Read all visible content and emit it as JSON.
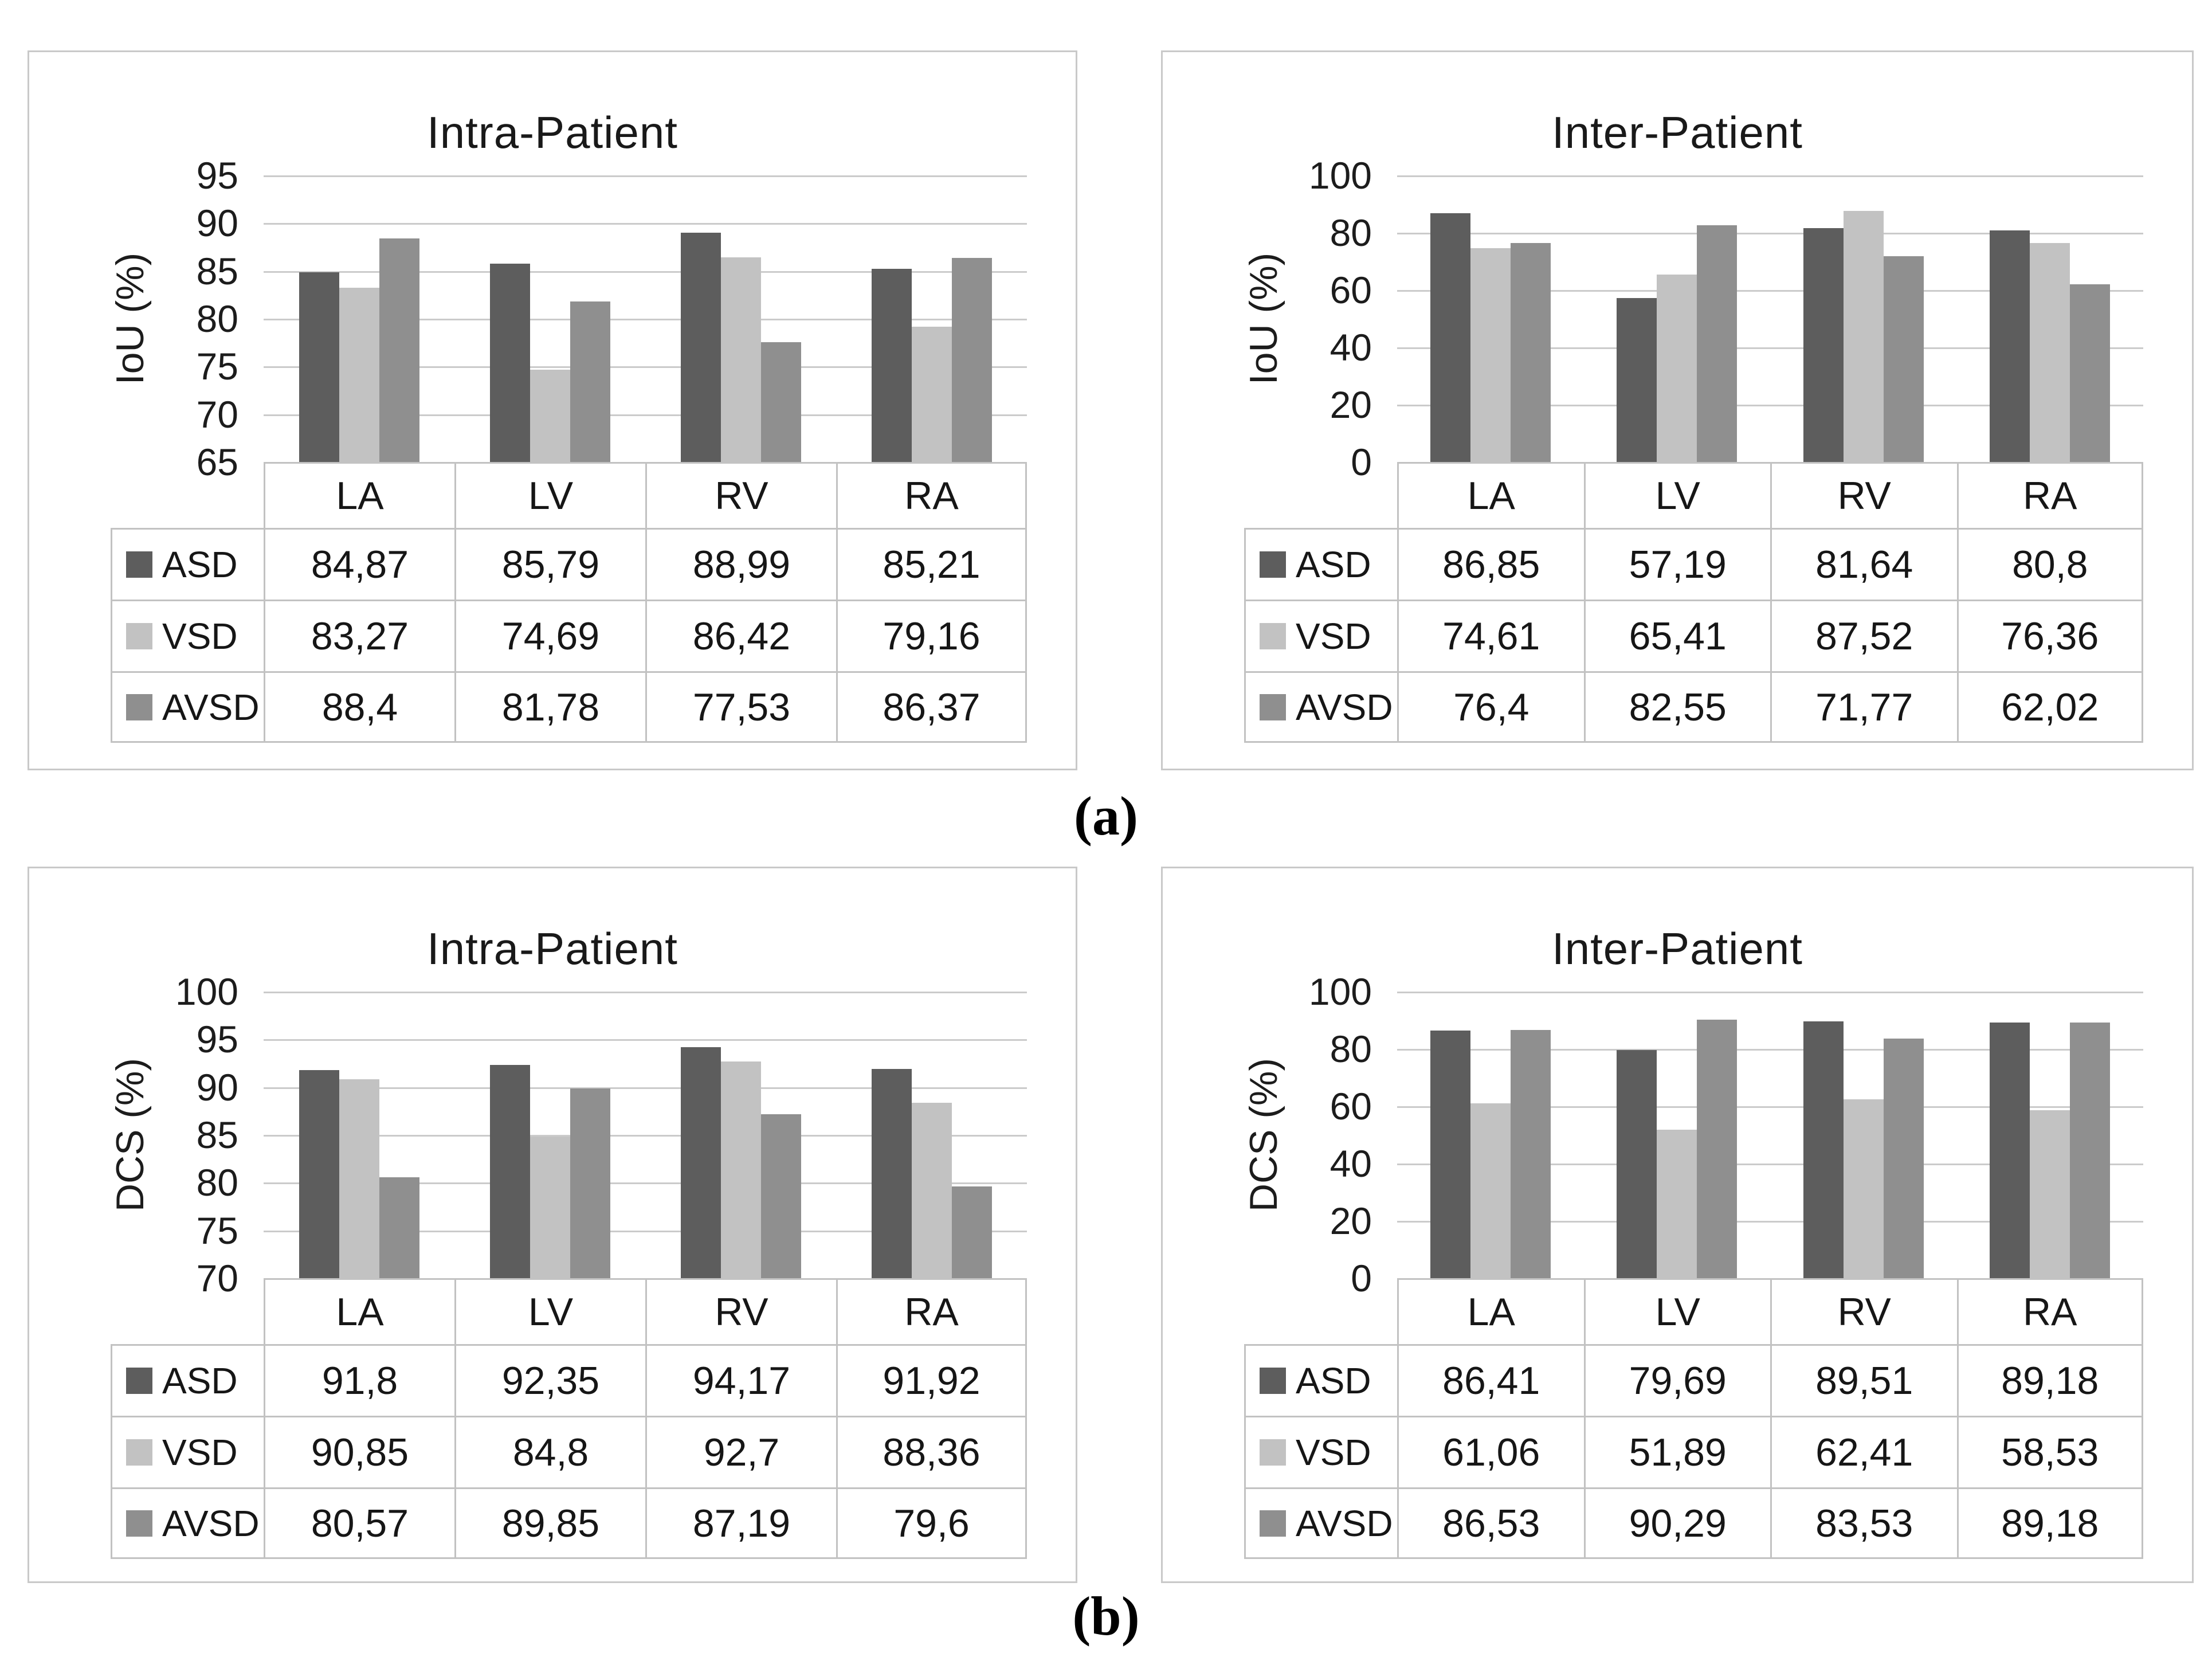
{
  "labels": {
    "a": "(a)",
    "b": "(b)"
  },
  "colors": {
    "asd": "#5d5d5d",
    "vsd": "#c2c2c2",
    "avsd": "#8f8f8f"
  },
  "chart_data": [
    {
      "id": "iou-intra-patient",
      "type": "bar",
      "title": "Intra-Patient",
      "ylabel": "IoU (%)",
      "y_min": 65,
      "y_max": 95,
      "ticks": [
        "95",
        "90",
        "85",
        "80",
        "75",
        "70",
        "65"
      ],
      "grid": true,
      "legend_position": "table-left",
      "categories": [
        "LA",
        "LV",
        "RV",
        "RA"
      ],
      "series": [
        {
          "name": "ASD",
          "color": "#5d5d5d",
          "values": [
            "84,87",
            "85,79",
            "88,99",
            "85,21"
          ]
        },
        {
          "name": "VSD",
          "color": "#c2c2c2",
          "values": [
            "83,27",
            "74,69",
            "86,42",
            "79,16"
          ]
        },
        {
          "name": "AVSD",
          "color": "#8f8f8f",
          "values": [
            "88,4",
            "81,78",
            "77,53",
            "86,37"
          ]
        }
      ]
    },
    {
      "id": "iou-inter-patient",
      "type": "bar",
      "title": "Inter-Patient",
      "ylabel": "IoU (%)",
      "y_min": 0,
      "y_max": 100,
      "ticks": [
        "100",
        "80",
        "60",
        "40",
        "20",
        "0"
      ],
      "grid": true,
      "legend_position": "table-left",
      "categories": [
        "LA",
        "LV",
        "RV",
        "RA"
      ],
      "series": [
        {
          "name": "ASD",
          "color": "#5d5d5d",
          "values": [
            "86,85",
            "57,19",
            "81,64",
            "80,8"
          ]
        },
        {
          "name": "VSD",
          "color": "#c2c2c2",
          "values": [
            "74,61",
            "65,41",
            "87,52",
            "76,36"
          ]
        },
        {
          "name": "AVSD",
          "color": "#8f8f8f",
          "values": [
            "76,4",
            "82,55",
            "71,77",
            "62,02"
          ]
        }
      ]
    },
    {
      "id": "dcs-intra-patient",
      "type": "bar",
      "title": "Intra-Patient",
      "ylabel": "DCS (%)",
      "y_min": 70,
      "y_max": 100,
      "ticks": [
        "100",
        "95",
        "90",
        "85",
        "80",
        "75",
        "70"
      ],
      "grid": true,
      "legend_position": "table-left",
      "categories": [
        "LA",
        "LV",
        "RV",
        "RA"
      ],
      "series": [
        {
          "name": "ASD",
          "color": "#5d5d5d",
          "values": [
            "91,8",
            "92,35",
            "94,17",
            "91,92"
          ]
        },
        {
          "name": "VSD",
          "color": "#c2c2c2",
          "values": [
            "90,85",
            "84,8",
            "92,7",
            "88,36"
          ]
        },
        {
          "name": "AVSD",
          "color": "#8f8f8f",
          "values": [
            "80,57",
            "89,85",
            "87,19",
            "79,6"
          ]
        }
      ]
    },
    {
      "id": "dcs-inter-patient",
      "type": "bar",
      "title": "Inter-Patient",
      "ylabel": "DCS (%)",
      "y_min": 0,
      "y_max": 100,
      "ticks": [
        "100",
        "80",
        "60",
        "40",
        "20",
        "0"
      ],
      "grid": true,
      "legend_position": "table-left",
      "categories": [
        "LA",
        "LV",
        "RV",
        "RA"
      ],
      "series": [
        {
          "name": "ASD",
          "color": "#5d5d5d",
          "values": [
            "86,41",
            "79,69",
            "89,51",
            "89,18"
          ]
        },
        {
          "name": "VSD",
          "color": "#c2c2c2",
          "values": [
            "61,06",
            "51,89",
            "62,41",
            "58,53"
          ]
        },
        {
          "name": "AVSD",
          "color": "#8f8f8f",
          "values": [
            "86,53",
            "90,29",
            "83,53",
            "89,18"
          ]
        }
      ]
    }
  ]
}
